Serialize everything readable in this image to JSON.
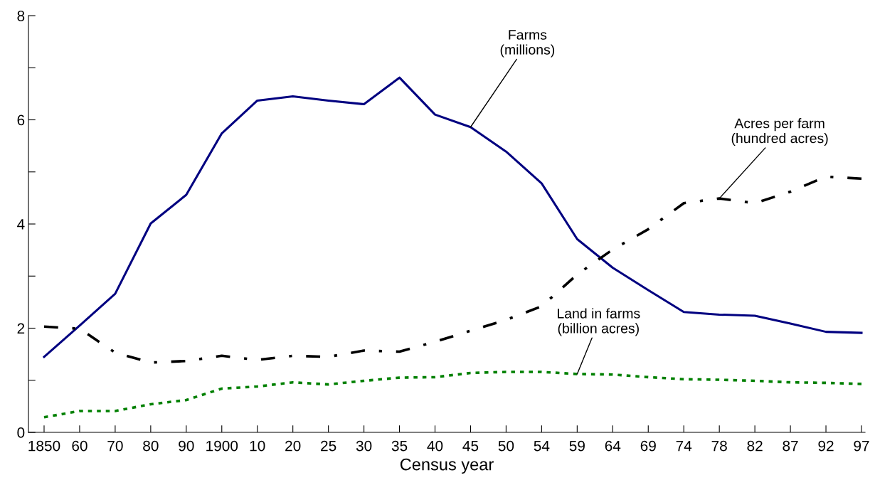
{
  "chart_data": {
    "type": "line",
    "xlabel": "Census year",
    "categories": [
      "1850",
      "60",
      "70",
      "80",
      "90",
      "1900",
      "10",
      "20",
      "25",
      "30",
      "35",
      "40",
      "45",
      "50",
      "54",
      "59",
      "64",
      "69",
      "74",
      "78",
      "82",
      "87",
      "92",
      "97"
    ],
    "series": [
      {
        "name": "Farms\n(millions)",
        "color": "#000080",
        "line_style": "solid",
        "values": [
          1.45,
          2.05,
          2.66,
          4.01,
          4.56,
          5.74,
          6.37,
          6.45,
          6.37,
          6.3,
          6.81,
          6.1,
          5.86,
          5.39,
          4.78,
          3.71,
          3.16,
          2.73,
          2.31,
          2.26,
          2.24,
          2.09,
          1.93,
          1.91
        ]
      },
      {
        "name": "Acres per farm\n(hundred acres)",
        "color": "#000000",
        "line_style": "dashed",
        "values": [
          2.03,
          1.99,
          1.53,
          1.34,
          1.37,
          1.47,
          1.39,
          1.47,
          1.45,
          1.57,
          1.55,
          1.74,
          1.95,
          2.16,
          2.42,
          3.03,
          3.51,
          3.9,
          4.4,
          4.49,
          4.4,
          4.62,
          4.91,
          4.87
        ]
      },
      {
        "name": "Land in farms\n(billion acres)",
        "color": "#008000",
        "line_style": "dotted",
        "values": [
          0.29,
          0.41,
          0.41,
          0.54,
          0.62,
          0.84,
          0.88,
          0.96,
          0.92,
          0.99,
          1.05,
          1.06,
          1.14,
          1.16,
          1.16,
          1.12,
          1.11,
          1.06,
          1.02,
          1.01,
          0.99,
          0.96,
          0.95,
          0.93
        ]
      }
    ],
    "ylim": [
      0,
      8
    ],
    "yticks": [
      0,
      {
        "value": 1,
        "label": null
      },
      2,
      {
        "value": 3,
        "label": null
      },
      4,
      {
        "value": 5,
        "label": null
      },
      6,
      {
        "value": 7,
        "label": null
      },
      8
    ],
    "grid": false,
    "legend": false,
    "marker": "none"
  }
}
